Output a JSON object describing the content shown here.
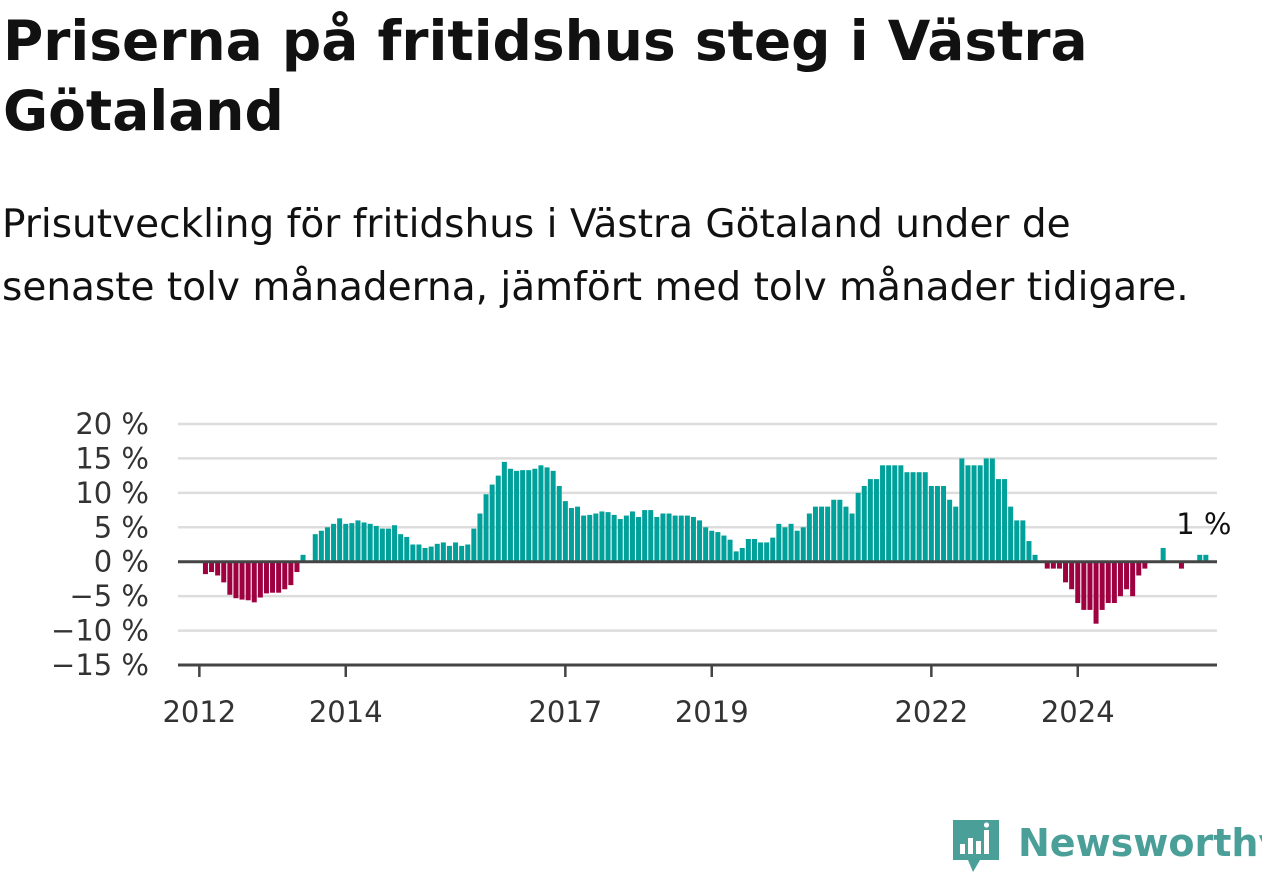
{
  "title": "Priserna på fritidshus steg i Västra Götaland",
  "subtitle": "Prisutveckling för fritidshus i Västra Götaland under de senaste tolv månaderna, jämfört med tolv månader tidigare.",
  "brand": {
    "name": "Newsworthy",
    "color": "#4a9f98",
    "icon": "newsworthy-logo-icon"
  },
  "colors": {
    "positive": "#00a19a",
    "negative": "#9e0040",
    "grid": "#dddddd",
    "axis": "#444444"
  },
  "chart_data": {
    "type": "bar",
    "x_start": "2011-10",
    "x_ticks": [
      "2012",
      "2014",
      "2017",
      "2019",
      "2022",
      "2024"
    ],
    "x_tick_positions": [
      "2012-01",
      "2014-01",
      "2017-01",
      "2019-01",
      "2022-01",
      "2024-01"
    ],
    "y_ticks": [
      "20 %",
      "15 %",
      "10 %",
      "5 %",
      "0 %",
      "−5 %",
      "−10 %",
      "−15 %"
    ],
    "ylim": [
      -15,
      20
    ],
    "end_label": "1 %",
    "values": [
      0,
      0,
      0,
      0,
      -1.8,
      -1.5,
      -2,
      -3,
      -4.8,
      -5.3,
      -5.5,
      -5.6,
      -5.9,
      -5.2,
      -4.6,
      -4.5,
      -4.5,
      -4,
      -3.4,
      -1.5,
      1,
      0,
      4,
      4.5,
      5,
      5.5,
      6.3,
      5.5,
      5.6,
      6,
      5.7,
      5.5,
      5.2,
      4.8,
      4.8,
      5.3,
      4,
      3.6,
      2.5,
      2.5,
      2,
      2.2,
      2.6,
      2.8,
      2.3,
      2.8,
      2.3,
      2.5,
      4.8,
      7,
      9.8,
      11.2,
      12.5,
      14.5,
      13.5,
      13.2,
      13.3,
      13.3,
      13.5,
      14,
      13.7,
      13.2,
      11,
      8.8,
      7.8,
      8,
      6.7,
      6.8,
      7,
      7.3,
      7.2,
      6.8,
      6.2,
      6.7,
      7.3,
      6.5,
      7.5,
      7.5,
      6.5,
      7,
      7,
      6.7,
      6.7,
      6.7,
      6.5,
      6,
      5,
      4.5,
      4.3,
      3.8,
      3.2,
      1.5,
      2,
      3.3,
      3.3,
      2.8,
      2.8,
      3.5,
      5.5,
      5,
      5.5,
      4.5,
      5,
      7,
      8,
      8,
      8,
      9,
      9,
      8,
      7,
      10,
      11,
      12,
      12,
      14,
      14,
      14,
      14,
      13,
      13,
      13,
      13,
      11,
      11,
      11,
      9,
      8,
      15,
      14,
      14,
      14,
      15,
      15,
      12,
      12,
      8,
      6,
      6,
      3,
      1,
      0,
      -1,
      -1,
      -1,
      -3,
      -4,
      -6,
      -7,
      -7,
      -9,
      -7,
      -6,
      -6,
      -5,
      -4,
      -5,
      -2,
      -1,
      0,
      0,
      2,
      0,
      0,
      -1,
      0,
      0,
      1,
      1
    ]
  }
}
